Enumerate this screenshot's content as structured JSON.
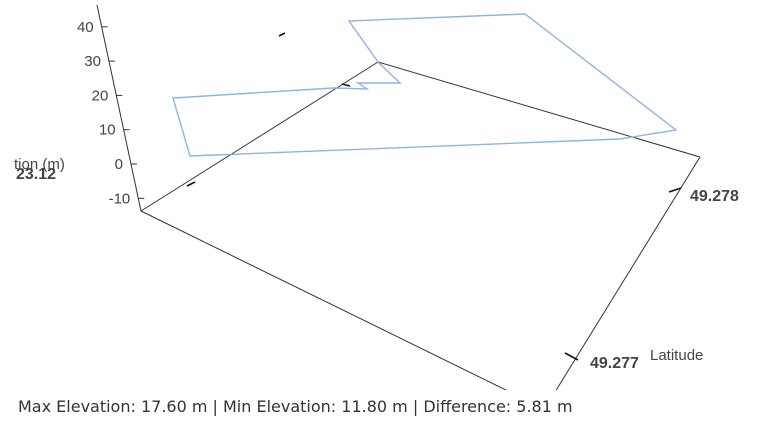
{
  "chart_data": {
    "type": "line",
    "title": "",
    "elevation_axis": {
      "label": "tion (m)",
      "ticks": [
        -10,
        0,
        10,
        20,
        30,
        40
      ],
      "tick_labels": [
        "-10",
        "0",
        "10",
        "20",
        "30",
        "40"
      ]
    },
    "latitude_axis": {
      "label": "Latitude",
      "ticks": [
        49.277,
        49.278
      ],
      "tick_labels": [
        "49.277",
        "49.278"
      ]
    },
    "longitude_axis": {
      "label": "",
      "tick_labels": [
        "23.12"
      ]
    },
    "grid": false,
    "line_color": "#8fb3e6",
    "box_color": "#333333"
  },
  "summary": {
    "text": "Max Elevation: 17.60 m | Min Elevation: 11.80 m | Difference: 5.81 m",
    "max_elevation_m": 17.6,
    "min_elevation_m": 11.8,
    "difference_m": 5.81
  }
}
